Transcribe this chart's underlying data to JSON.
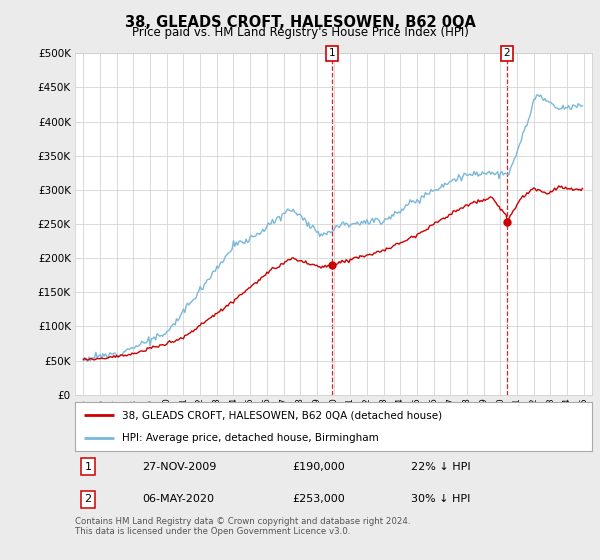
{
  "title": "38, GLEADS CROFT, HALESOWEN, B62 0QA",
  "subtitle": "Price paid vs. HM Land Registry's House Price Index (HPI)",
  "ytick_values": [
    0,
    50000,
    100000,
    150000,
    200000,
    250000,
    300000,
    350000,
    400000,
    450000,
    500000
  ],
  "ylim": [
    0,
    500000
  ],
  "xlim_start": 1994.5,
  "xlim_end": 2025.5,
  "hpi_color": "#7ab8d9",
  "price_color": "#cc0000",
  "marker_color": "#cc0000",
  "sale1_x": 2009.92,
  "sale1_y": 190000,
  "sale2_x": 2020.37,
  "sale2_y": 253000,
  "legend_house": "38, GLEADS CROFT, HALESOWEN, B62 0QA (detached house)",
  "legend_hpi": "HPI: Average price, detached house, Birmingham",
  "table_rows": [
    [
      "1",
      "27-NOV-2009",
      "£190,000",
      "22% ↓ HPI"
    ],
    [
      "2",
      "06-MAY-2020",
      "£253,000",
      "30% ↓ HPI"
    ]
  ],
  "footer": "Contains HM Land Registry data © Crown copyright and database right 2024.\nThis data is licensed under the Open Government Licence v3.0.",
  "background_color": "#ebebeb",
  "plot_bg_color": "#ffffff",
  "grid_color": "#cccccc",
  "vline_color": "#cc0000"
}
